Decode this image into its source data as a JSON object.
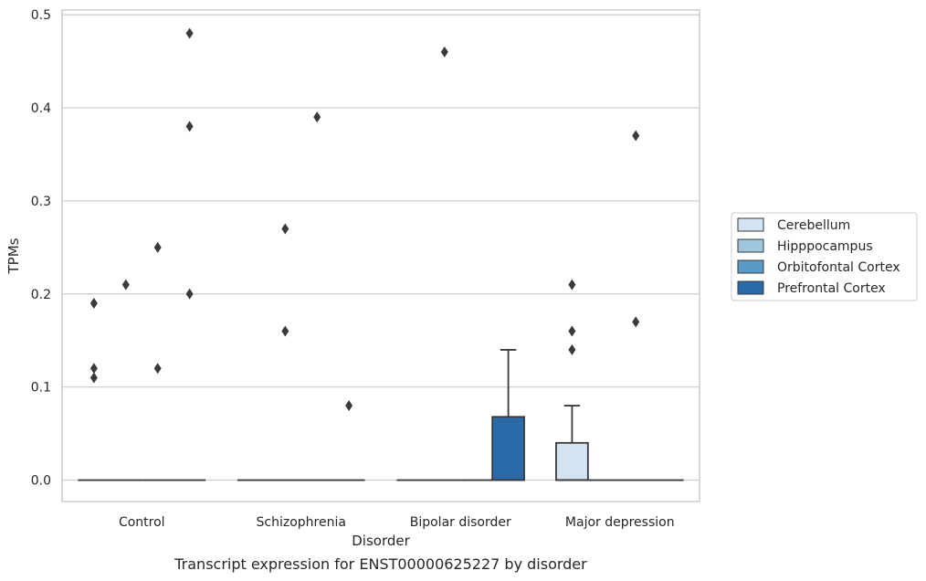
{
  "chart_data": {
    "type": "box",
    "title": "",
    "caption": "Transcript expression for ENST00000625227 by disorder",
    "xlabel": "Disorder",
    "ylabel": "TPMs",
    "ylim": [
      -0.023,
      0.505
    ],
    "yticks": [
      "0.0",
      "0.1",
      "0.2",
      "0.3",
      "0.4",
      "0.5"
    ],
    "ytick_values": [
      0.0,
      0.1,
      0.2,
      0.3,
      0.4,
      0.5
    ],
    "grid": "horizontal",
    "legend_placement": "center-right",
    "categories": [
      "Control",
      "Schizophrenia",
      "Bipolar disorder",
      "Major depression"
    ],
    "series": [
      {
        "name": "Cerebellum",
        "color": "#d3e3f1",
        "boxes": [
          {
            "q1": 0,
            "median": 0,
            "q3": 0,
            "whisker_low": 0,
            "whisker_high": 0,
            "outliers": [
              0.19,
              0.12,
              0.11
            ]
          },
          {
            "q1": 0,
            "median": 0,
            "q3": 0,
            "whisker_low": 0,
            "whisker_high": 0,
            "outliers": []
          },
          {
            "q1": 0,
            "median": 0,
            "q3": 0,
            "whisker_low": 0,
            "whisker_high": 0,
            "outliers": []
          },
          {
            "q1": 0,
            "median": 0,
            "q3": 0.04,
            "whisker_low": 0,
            "whisker_high": 0.08,
            "outliers": [
              0.21,
              0.16,
              0.14
            ]
          }
        ]
      },
      {
        "name": "Hipppocampus",
        "color": "#9fc5df",
        "boxes": [
          {
            "q1": 0,
            "median": 0,
            "q3": 0,
            "whisker_low": 0,
            "whisker_high": 0,
            "outliers": [
              0.21
            ]
          },
          {
            "q1": 0,
            "median": 0,
            "q3": 0,
            "whisker_low": 0,
            "whisker_high": 0,
            "outliers": [
              0.27,
              0.16
            ]
          },
          {
            "q1": 0,
            "median": 0,
            "q3": 0,
            "whisker_low": 0,
            "whisker_high": 0,
            "outliers": [
              0.46
            ]
          },
          {
            "q1": 0,
            "median": 0,
            "q3": 0,
            "whisker_low": 0,
            "whisker_high": 0,
            "outliers": []
          }
        ]
      },
      {
        "name": "Orbitofontal Cortex",
        "color": "#5a9ac9",
        "boxes": [
          {
            "q1": 0,
            "median": 0,
            "q3": 0,
            "whisker_low": 0,
            "whisker_high": 0,
            "outliers": [
              0.25,
              0.12
            ]
          },
          {
            "q1": 0,
            "median": 0,
            "q3": 0,
            "whisker_low": 0,
            "whisker_high": 0,
            "outliers": [
              0.39
            ]
          },
          {
            "q1": 0,
            "median": 0,
            "q3": 0,
            "whisker_low": 0,
            "whisker_high": 0,
            "outliers": []
          },
          {
            "q1": 0,
            "median": 0,
            "q3": 0,
            "whisker_low": 0,
            "whisker_high": 0,
            "outliers": [
              0.37,
              0.17
            ]
          }
        ]
      },
      {
        "name": "Prefrontal Cortex",
        "color": "#2a6aa8",
        "boxes": [
          {
            "q1": 0,
            "median": 0,
            "q3": 0,
            "whisker_low": 0,
            "whisker_high": 0,
            "outliers": [
              0.48,
              0.38,
              0.2
            ]
          },
          {
            "q1": 0,
            "median": 0,
            "q3": 0,
            "whisker_low": 0,
            "whisker_high": 0,
            "outliers": [
              0.08
            ]
          },
          {
            "q1": 0,
            "median": 0,
            "q3": 0.068,
            "whisker_low": 0,
            "whisker_high": 0.14,
            "outliers": []
          },
          {
            "q1": 0,
            "median": 0,
            "q3": 0,
            "whisker_low": 0,
            "whisker_high": 0,
            "outliers": []
          }
        ]
      }
    ]
  }
}
